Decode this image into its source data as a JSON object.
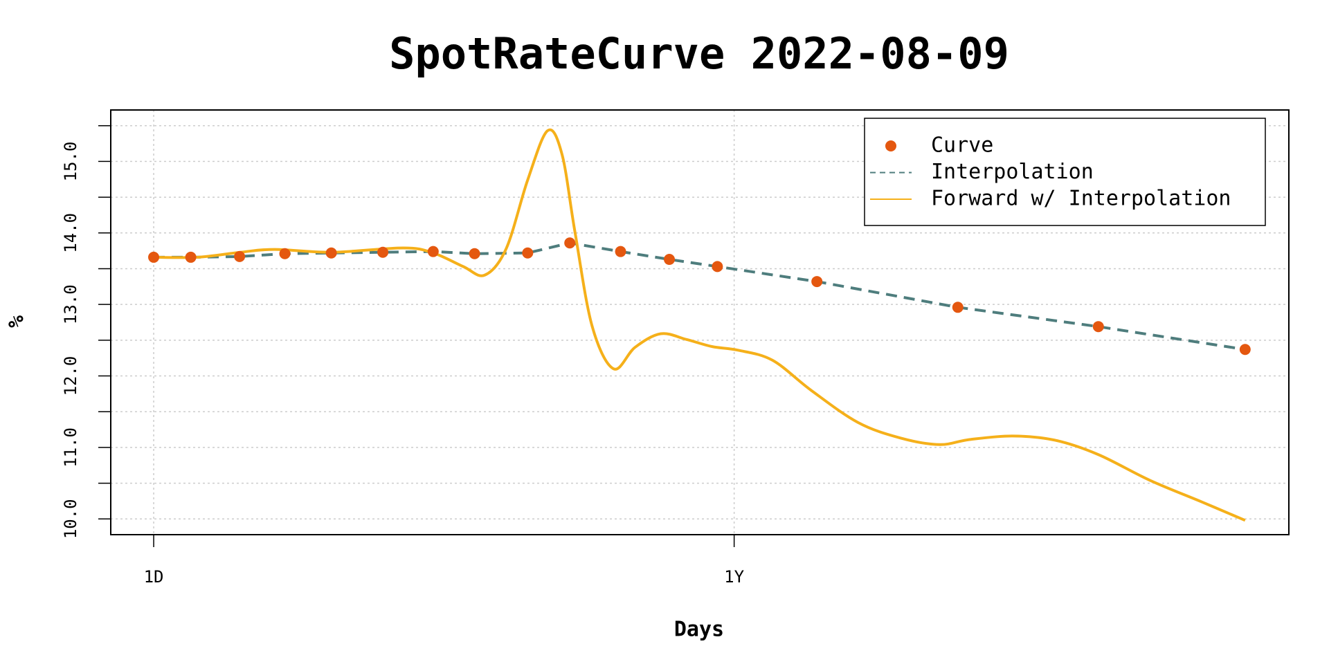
{
  "chart_data": {
    "type": "line",
    "title": "SpotRateCurve 2022-08-09",
    "xlabel": "Days",
    "ylabel": "%",
    "xlim": [
      -0.1,
      30.08
    ],
    "xticks": [
      {
        "value": 1,
        "label": "1D"
      },
      {
        "value": 15.87,
        "label": "1Y"
      }
    ],
    "ylim": [
      9.78,
      15.72
    ],
    "yticks": [
      {
        "value": 10,
        "label": "10.0"
      },
      {
        "value": 10.5,
        "label": null
      },
      {
        "value": 11,
        "label": "11.0"
      },
      {
        "value": 11.5,
        "label": null
      },
      {
        "value": 12,
        "label": "12.0"
      },
      {
        "value": 12.5,
        "label": null
      },
      {
        "value": 13,
        "label": "13.0"
      },
      {
        "value": 13.5,
        "label": null
      },
      {
        "value": 14,
        "label": "14.0"
      },
      {
        "value": 14.5,
        "label": null
      },
      {
        "value": 15,
        "label": "15.0"
      },
      {
        "value": 15.5,
        "label": null
      }
    ],
    "grid": true,
    "legend": "topright",
    "series": [
      {
        "name": "Curve",
        "color": "#e4570f",
        "style": "points",
        "x": [
          1,
          1.95,
          3.2,
          4.36,
          5.55,
          6.87,
          8.16,
          9.22,
          10.58,
          11.66,
          12.96,
          14.21,
          15.44,
          17.99,
          21.6,
          25.2,
          28.96
        ],
        "values": [
          13.66,
          13.66,
          13.67,
          13.71,
          13.72,
          13.73,
          13.74,
          13.71,
          13.72,
          13.86,
          13.74,
          13.63,
          13.53,
          13.32,
          12.96,
          12.69,
          12.37
        ]
      },
      {
        "name": "Interpolation",
        "color": "#4e7d7d",
        "style": "dashed",
        "x": [
          1,
          1.95,
          3.2,
          4.36,
          5.55,
          6.87,
          8.16,
          9.22,
          10.58,
          11.66,
          12.96,
          14.21,
          15.44,
          17.99,
          21.6,
          25.2,
          28.96
        ],
        "values": [
          13.66,
          13.66,
          13.67,
          13.71,
          13.72,
          13.73,
          13.74,
          13.71,
          13.72,
          13.86,
          13.74,
          13.63,
          13.53,
          13.32,
          12.96,
          12.69,
          12.37
        ]
      },
      {
        "name": "Forward w/ Interpolation",
        "color": "#f5b01a",
        "style": "solid",
        "x": [
          1,
          2.12,
          3.22,
          4.1,
          5.55,
          7.4,
          8.16,
          8.93,
          9.48,
          10.03,
          10.58,
          11.09,
          11.46,
          11.79,
          12.23,
          12.78,
          13.33,
          13.99,
          14.65,
          15.31,
          15.97,
          16.85,
          17.84,
          19.04,
          20.14,
          21.13,
          21.9,
          23.0,
          24.1,
          25.2,
          26.52,
          27.84,
          28.96
        ],
        "values": [
          13.66,
          13.66,
          13.73,
          13.77,
          13.73,
          13.79,
          13.72,
          13.53,
          13.41,
          13.78,
          14.74,
          15.43,
          15.1,
          14.02,
          12.7,
          12.1,
          12.4,
          12.59,
          12.51,
          12.41,
          12.36,
          12.22,
          11.8,
          11.35,
          11.13,
          11.04,
          11.11,
          11.16,
          11.1,
          10.9,
          10.54,
          10.24,
          9.98
        ]
      }
    ]
  }
}
